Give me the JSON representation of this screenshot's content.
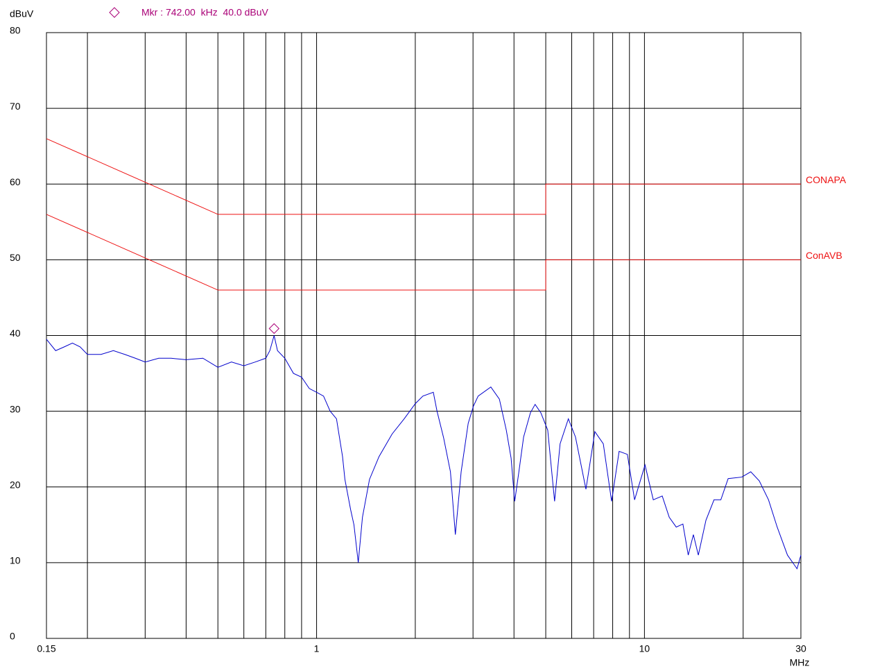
{
  "chart_data": {
    "type": "line",
    "y_label": "dBuV",
    "x_label": "MHz",
    "xscale": "log",
    "grid": true,
    "xlim": [
      0.15,
      30
    ],
    "ylim": [
      0,
      80
    ],
    "xticks": [
      0.15,
      1,
      10,
      30
    ],
    "xminor_ticks": [
      0.2,
      0.3,
      0.4,
      0.5,
      0.6,
      0.7,
      0.8,
      0.9,
      2,
      3,
      4,
      5,
      6,
      7,
      8,
      9,
      20
    ],
    "yticks": [
      0,
      10,
      20,
      30,
      40,
      50,
      60,
      70,
      80
    ],
    "series": [
      {
        "name": "CONAPA",
        "color": "#ee1111",
        "x": [
          0.15,
          0.5,
          5,
          5,
          30
        ],
        "values": [
          66,
          56,
          56,
          60,
          60
        ]
      },
      {
        "name": "ConAVB",
        "color": "#ee1111",
        "x": [
          0.15,
          0.5,
          5,
          5,
          30
        ],
        "values": [
          56,
          46,
          46,
          50,
          50
        ]
      },
      {
        "color": "#0000cc",
        "x": [
          0.15,
          0.16,
          0.17,
          0.18,
          0.19,
          0.2,
          0.22,
          0.24,
          0.26,
          0.28,
          0.3,
          0.33,
          0.36,
          0.4,
          0.45,
          0.5,
          0.55,
          0.6,
          0.65,
          0.7,
          0.72,
          0.742,
          0.76,
          0.8,
          0.85,
          0.9,
          0.95,
          1.0,
          1.05,
          1.1,
          1.15,
          1.2,
          1.22,
          1.27,
          1.3,
          1.34,
          1.38,
          1.45,
          1.55,
          1.7,
          1.85,
          2.0,
          2.11,
          2.27,
          2.33,
          2.44,
          2.56,
          2.65,
          2.76,
          2.9,
          3.01,
          3.11,
          3.4,
          3.61,
          3.79,
          3.92,
          4.02,
          4.14,
          4.28,
          4.49,
          4.64,
          4.83,
          5.07,
          5.32,
          5.53,
          5.86,
          6.16,
          6.63,
          7.06,
          7.49,
          7.94,
          8.37,
          8.87,
          9.33,
          10.04,
          10.64,
          11.33,
          11.9,
          12.5,
          13.1,
          13.6,
          14.1,
          14.6,
          15.4,
          16.3,
          17.1,
          18,
          19.8,
          21.1,
          22.4,
          23.9,
          25.4,
          27.3,
          29.2,
          30
        ],
        "values": [
          39.5,
          38,
          38.5,
          39,
          38.5,
          37.5,
          37.5,
          38,
          37.5,
          37,
          36.5,
          37,
          37,
          36.8,
          37,
          35.8,
          36.5,
          36,
          36.5,
          37,
          38,
          40,
          38,
          37,
          35,
          34.5,
          33,
          32.5,
          32,
          30,
          29,
          24,
          21,
          17,
          15,
          10,
          16,
          21,
          24,
          27,
          29,
          31,
          32,
          32.5,
          30,
          26.5,
          22,
          13.7,
          22,
          28.4,
          30.7,
          32,
          33.2,
          31.6,
          27.5,
          23.8,
          18.1,
          22,
          26.6,
          29.8,
          30.9,
          29.8,
          27.5,
          18.1,
          25.7,
          29,
          26.6,
          19.7,
          27.3,
          25.7,
          18.1,
          24.7,
          24.3,
          18.3,
          22.9,
          18.3,
          18.8,
          16,
          14.7,
          15.1,
          11,
          13.7,
          11,
          15.6,
          18.3,
          18.3,
          21.1,
          21.3,
          22,
          20.8,
          18.3,
          14.7,
          11,
          9.2,
          11
        ]
      }
    ],
    "marker": {
      "x": 0.742,
      "y": 40,
      "label": "Mkr : 742.00  kHz  40.0 dBuV",
      "color": "#aa0077"
    }
  }
}
